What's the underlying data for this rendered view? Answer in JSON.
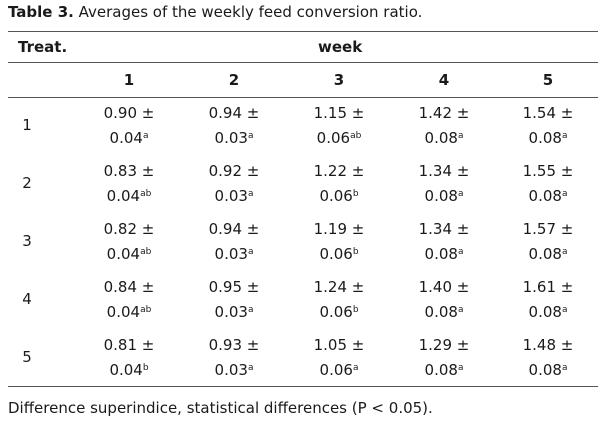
{
  "caption": {
    "label": "Table 3.",
    "text": " Averages of the weekly feed conversion ratio."
  },
  "header": {
    "treat": "Treat.",
    "week": "week",
    "weeks": [
      "1",
      "2",
      "3",
      "4",
      "5"
    ]
  },
  "rows": [
    {
      "treat": "1",
      "cells": [
        {
          "mean": "0.90 ±",
          "se": "0.04",
          "sup": "a"
        },
        {
          "mean": "0.94 ±",
          "se": "0.03",
          "sup": "a"
        },
        {
          "mean": "1.15 ±",
          "se": "0.06",
          "sup": "ab"
        },
        {
          "mean": "1.42 ±",
          "se": "0.08",
          "sup": "a"
        },
        {
          "mean": "1.54 ±",
          "se": "0.08",
          "sup": "a"
        }
      ]
    },
    {
      "treat": "2",
      "cells": [
        {
          "mean": "0.83 ±",
          "se": "0.04",
          "sup": "ab"
        },
        {
          "mean": "0.92 ±",
          "se": "0.03",
          "sup": "a"
        },
        {
          "mean": "1.22 ±",
          "se": "0.06",
          "sup": "b"
        },
        {
          "mean": "1.34 ±",
          "se": "0.08",
          "sup": "a"
        },
        {
          "mean": "1.55 ±",
          "se": "0.08",
          "sup": "a"
        }
      ]
    },
    {
      "treat": "3",
      "cells": [
        {
          "mean": "0.82 ±",
          "se": "0.04",
          "sup": "ab"
        },
        {
          "mean": "0.94 ±",
          "se": "0.03",
          "sup": "a"
        },
        {
          "mean": "1.19 ±",
          "se": "0.06",
          "sup": "b"
        },
        {
          "mean": "1.34 ±",
          "se": "0.08",
          "sup": "a"
        },
        {
          "mean": "1.57 ±",
          "se": "0.08",
          "sup": "a"
        }
      ]
    },
    {
      "treat": "4",
      "cells": [
        {
          "mean": "0.84 ±",
          "se": "0.04",
          "sup": "ab"
        },
        {
          "mean": "0.95 ±",
          "se": "0.03",
          "sup": "a"
        },
        {
          "mean": "1.24 ±",
          "se": "0.06",
          "sup": "b"
        },
        {
          "mean": "1.40 ±",
          "se": "0.08",
          "sup": "a"
        },
        {
          "mean": "1.61 ±",
          "se": "0.08",
          "sup": "a"
        }
      ]
    },
    {
      "treat": "5",
      "cells": [
        {
          "mean": "0.81 ±",
          "se": "0.04",
          "sup": "b"
        },
        {
          "mean": "0.93 ±",
          "se": "0.03",
          "sup": "a"
        },
        {
          "mean": "1.05 ±",
          "se": "0.06",
          "sup": "a"
        },
        {
          "mean": "1.29 ±",
          "se": "0.08",
          "sup": "a"
        },
        {
          "mean": "1.48 ±",
          "se": "0.08",
          "sup": "a"
        }
      ]
    }
  ],
  "footnote": "Difference superindice, statistical differences (P < 0.05)."
}
